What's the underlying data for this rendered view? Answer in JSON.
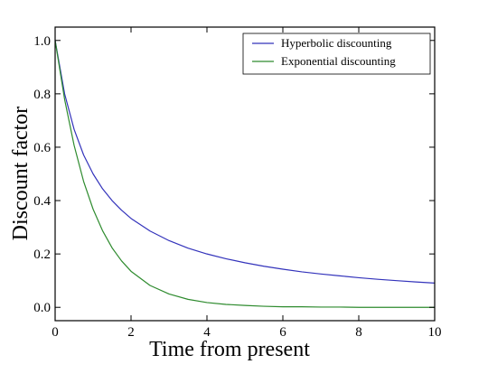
{
  "chart_data": {
    "type": "line",
    "title": "",
    "xlabel": "Time from present",
    "ylabel": "Discount factor",
    "xlim": [
      0,
      10
    ],
    "ylim": [
      -0.05,
      1.05
    ],
    "x_ticks": [
      {
        "value": 0,
        "label": "0"
      },
      {
        "value": 2,
        "label": "2"
      },
      {
        "value": 4,
        "label": "4"
      },
      {
        "value": 6,
        "label": "6"
      },
      {
        "value": 8,
        "label": "8"
      },
      {
        "value": 10,
        "label": "10"
      }
    ],
    "y_ticks": [
      {
        "value": 0.0,
        "label": "0.0"
      },
      {
        "value": 0.2,
        "label": "0.2"
      },
      {
        "value": 0.4,
        "label": "0.4"
      },
      {
        "value": 0.6,
        "label": "0.6"
      },
      {
        "value": 0.8,
        "label": "0.8"
      },
      {
        "value": 1.0,
        "label": "1.0"
      }
    ],
    "grid": false,
    "legend_position": "top-right",
    "x": [
      0,
      0.25,
      0.5,
      0.75,
      1,
      1.25,
      1.5,
      1.75,
      2,
      2.5,
      3,
      3.5,
      4,
      4.5,
      5,
      5.5,
      6,
      6.5,
      7,
      7.5,
      8,
      8.5,
      9,
      9.5,
      10
    ],
    "series": [
      {
        "name": "Hyperbolic discounting",
        "color": "#3333bb",
        "values": [
          1.0,
          0.8,
          0.667,
          0.571,
          0.5,
          0.444,
          0.4,
          0.364,
          0.333,
          0.286,
          0.25,
          0.222,
          0.2,
          0.182,
          0.167,
          0.154,
          0.143,
          0.133,
          0.125,
          0.118,
          0.111,
          0.105,
          0.1,
          0.095,
          0.091
        ]
      },
      {
        "name": "Exponential discounting",
        "color": "#2e8b2e",
        "values": [
          1.0,
          0.779,
          0.607,
          0.472,
          0.368,
          0.287,
          0.223,
          0.174,
          0.135,
          0.082,
          0.05,
          0.03,
          0.018,
          0.011,
          0.007,
          0.004,
          0.002,
          0.002,
          0.001,
          0.001,
          0.0,
          0.0,
          0.0,
          0.0,
          0.0
        ]
      }
    ]
  }
}
